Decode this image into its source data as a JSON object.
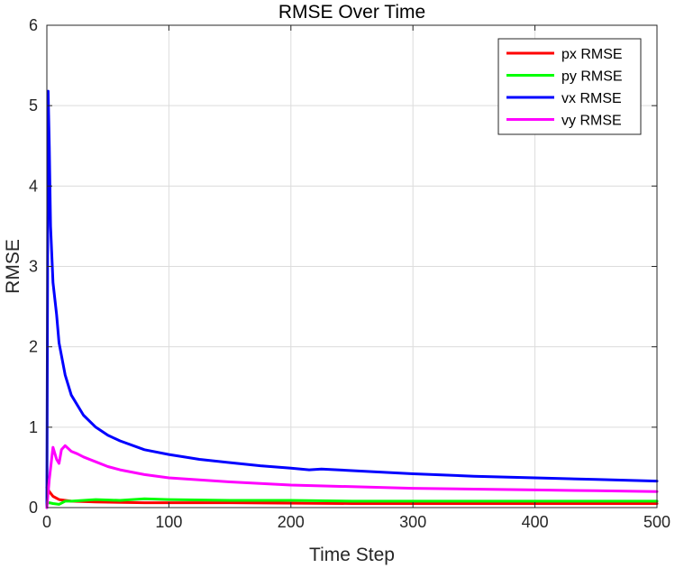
{
  "chart_data": {
    "type": "line",
    "title": "RMSE Over Time",
    "xlabel": "Time Step",
    "ylabel": "RMSE",
    "xlim": [
      0,
      500
    ],
    "ylim": [
      0,
      6
    ],
    "xticks": [
      0,
      100,
      200,
      300,
      400,
      500
    ],
    "yticks": [
      0,
      1,
      2,
      3,
      4,
      5,
      6
    ],
    "grid": true,
    "legend_position": "top-right",
    "series": [
      {
        "name": "px RMSE",
        "color": "#ff0000",
        "x": [
          0,
          2,
          5,
          10,
          20,
          40,
          80,
          150,
          250,
          350,
          450,
          500
        ],
        "y": [
          0.25,
          0.2,
          0.14,
          0.1,
          0.08,
          0.07,
          0.06,
          0.06,
          0.05,
          0.05,
          0.05,
          0.05
        ]
      },
      {
        "name": "py RMSE",
        "color": "#00ff00",
        "x": [
          0,
          2,
          5,
          10,
          15,
          20,
          30,
          40,
          60,
          80,
          100,
          150,
          200,
          250,
          300,
          350,
          400,
          450,
          500
        ],
        "y": [
          0.05,
          0.06,
          0.05,
          0.04,
          0.08,
          0.08,
          0.09,
          0.1,
          0.09,
          0.11,
          0.1,
          0.09,
          0.09,
          0.08,
          0.08,
          0.08,
          0.08,
          0.08,
          0.08
        ]
      },
      {
        "name": "vx RMSE",
        "color": "#0000ff",
        "x": [
          0,
          1,
          2,
          3,
          5,
          8,
          10,
          15,
          20,
          30,
          40,
          50,
          60,
          80,
          100,
          125,
          150,
          175,
          200,
          215,
          225,
          250,
          300,
          350,
          400,
          450,
          500
        ],
        "y": [
          0.0,
          5.18,
          4.5,
          3.5,
          2.8,
          2.4,
          2.05,
          1.65,
          1.4,
          1.15,
          1.0,
          0.9,
          0.83,
          0.72,
          0.66,
          0.6,
          0.56,
          0.52,
          0.49,
          0.47,
          0.48,
          0.46,
          0.42,
          0.39,
          0.37,
          0.35,
          0.33
        ]
      },
      {
        "name": "vy RMSE",
        "color": "#ff00ff",
        "x": [
          0,
          2,
          5,
          8,
          10,
          12,
          15,
          20,
          25,
          30,
          40,
          50,
          60,
          80,
          100,
          150,
          200,
          250,
          300,
          350,
          400,
          450,
          500
        ],
        "y": [
          0.0,
          0.35,
          0.75,
          0.6,
          0.55,
          0.72,
          0.77,
          0.7,
          0.67,
          0.63,
          0.57,
          0.51,
          0.47,
          0.41,
          0.37,
          0.32,
          0.28,
          0.26,
          0.24,
          0.23,
          0.22,
          0.21,
          0.2
        ]
      }
    ]
  }
}
